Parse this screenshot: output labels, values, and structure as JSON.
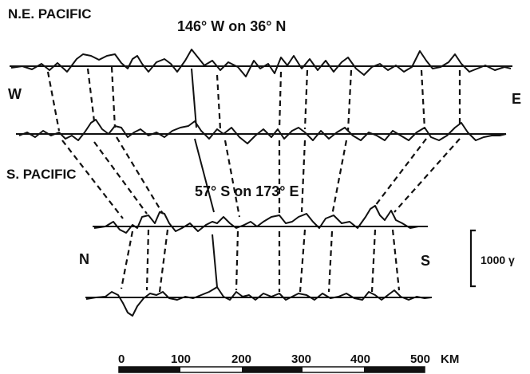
{
  "labels": {
    "region_top": "N.E. PACIFIC",
    "region_top_coords": "146° W on 36° N",
    "dir_west": "W",
    "dir_east": "E",
    "region_bottom": "S. PACIFIC",
    "region_bottom_coords": "57° S on 173° E",
    "dir_north": "N",
    "dir_south": "S",
    "scale_vertical": "1000 γ"
  },
  "scale_bar": {
    "ticks": [
      "0",
      "100",
      "200",
      "300",
      "400",
      "500"
    ],
    "unit": "KM"
  },
  "colors": {
    "ink": "#111111",
    "paper": "#ffffff"
  }
}
